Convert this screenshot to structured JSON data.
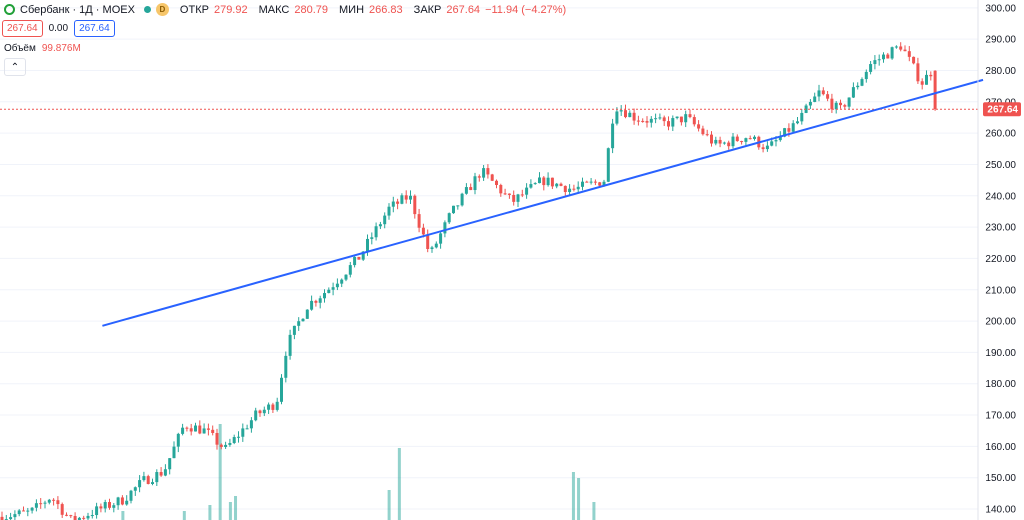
{
  "legend": {
    "symbol": "Сбербанк · 1Д · MOEX",
    "icon_logo": "sber-logo-icon",
    "badge": "D",
    "open_label": "ОТКР",
    "open_value": "279.92",
    "high_label": "МАКС",
    "high_value": "280.79",
    "low_label": "МИН",
    "low_value": "266.83",
    "close_label": "ЗАКР",
    "close_value": "267.64",
    "change": "−11.94 (−4.27%)"
  },
  "price_boxes": {
    "sell": "267.64",
    "spread": "0.00",
    "buy": "267.64"
  },
  "volume": {
    "label": "Объём",
    "value": "99.876M"
  },
  "collapse_symbol": "⌃",
  "colors": {
    "up": "#26a69a",
    "down": "#ef5350",
    "trendline": "#2962ff",
    "grid": "#f0f3fa",
    "last_price": "#ef5350"
  },
  "chart_data": {
    "type": "candlestick",
    "y_axis": {
      "ticks": [
        "300.00",
        "290.00",
        "280.00",
        "270.00",
        "260.00",
        "250.00",
        "240.00",
        "230.00",
        "220.00",
        "210.00",
        "200.00",
        "190.00",
        "180.00",
        "170.00",
        "160.00",
        "150.00",
        "140.00"
      ],
      "range": [
        136.5,
        302.5
      ],
      "position": "right"
    },
    "grid": true,
    "last_price": 267.64,
    "last_price_label": "267.64",
    "trendline": {
      "start": [
        0.1,
        198.5
      ],
      "end": [
        0.96,
        277
      ]
    },
    "waypoints": [
      [
        0,
        137.5
      ],
      [
        0.03,
        139
      ],
      [
        0.05,
        144
      ],
      [
        0.07,
        136
      ],
      [
        0.09,
        139
      ],
      [
        0.12,
        143
      ],
      [
        0.14,
        149
      ],
      [
        0.16,
        152
      ],
      [
        0.18,
        167
      ],
      [
        0.2,
        165
      ],
      [
        0.22,
        159
      ],
      [
        0.25,
        170
      ],
      [
        0.27,
        174
      ],
      [
        0.28,
        192
      ],
      [
        0.3,
        205
      ],
      [
        0.32,
        210
      ],
      [
        0.35,
        220
      ],
      [
        0.38,
        236
      ],
      [
        0.4,
        240
      ],
      [
        0.42,
        221
      ],
      [
        0.44,
        234
      ],
      [
        0.47,
        248
      ],
      [
        0.5,
        238
      ],
      [
        0.53,
        245
      ],
      [
        0.56,
        242
      ],
      [
        0.59,
        245
      ],
      [
        0.6,
        269
      ],
      [
        0.62,
        265
      ],
      [
        0.65,
        263
      ],
      [
        0.67,
        265
      ],
      [
        0.7,
        256
      ],
      [
        0.73,
        259
      ],
      [
        0.75,
        255
      ],
      [
        0.78,
        264
      ],
      [
        0.8,
        273
      ],
      [
        0.82,
        267
      ],
      [
        0.85,
        282
      ],
      [
        0.88,
        288
      ],
      [
        0.9,
        276
      ],
      [
        0.91,
        279.9
      ],
      [
        0.915,
        267.64
      ]
    ],
    "volume_bars": [
      [
        0.12,
        1.5
      ],
      [
        0.18,
        1.5
      ],
      [
        0.205,
        2.5
      ],
      [
        0.215,
        16
      ],
      [
        0.225,
        3
      ],
      [
        0.23,
        4
      ],
      [
        0.38,
        5
      ],
      [
        0.39,
        12
      ],
      [
        0.56,
        8
      ],
      [
        0.565,
        7
      ],
      [
        0.58,
        3
      ]
    ]
  }
}
